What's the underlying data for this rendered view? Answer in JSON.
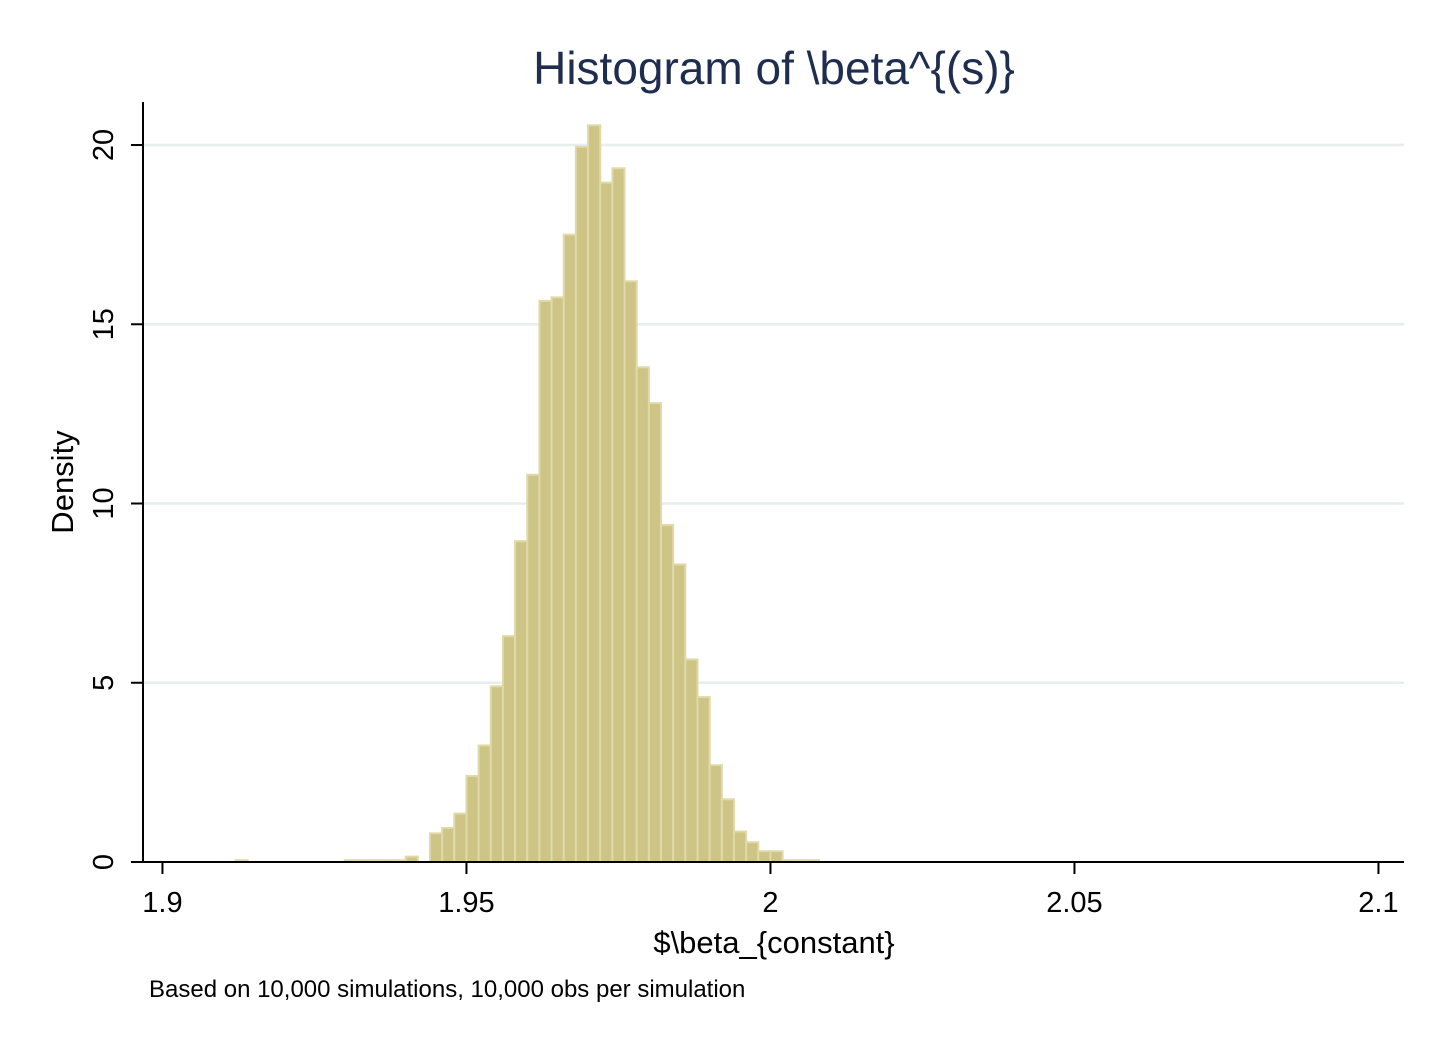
{
  "chart_data": {
    "type": "bar",
    "title": "Histogram of \\beta^{(s)}",
    "xlabel": "$\\beta_{constant}",
    "ylabel": "Density",
    "note": "Based on 10,000 simulations, 10,000 obs per simulation",
    "xlim": [
      1.8968,
      2.1042
    ],
    "ylim": [
      0,
      21.2
    ],
    "xticks": [
      {
        "value": 1.9,
        "label": "1.9"
      },
      {
        "value": 1.95,
        "label": "1.95"
      },
      {
        "value": 2.0,
        "label": "2"
      },
      {
        "value": 2.05,
        "label": "2.05"
      },
      {
        "value": 2.1,
        "label": "2.1"
      }
    ],
    "yticks": [
      {
        "value": 0,
        "label": "0"
      },
      {
        "value": 5,
        "label": "5"
      },
      {
        "value": 10,
        "label": "10"
      },
      {
        "value": 15,
        "label": "15"
      },
      {
        "value": 20,
        "label": "20"
      }
    ],
    "grid": true,
    "bar_color": "#cdc486",
    "bar_edge_color": "#e0d9a8",
    "title_color": "#1f2d4f",
    "grid_color": "#e6eeee",
    "bin_width": 0.002,
    "bins": [
      {
        "x0": 1.912,
        "density": 0.05
      },
      {
        "x0": 1.93,
        "density": 0.05
      },
      {
        "x0": 1.932,
        "density": 0.05
      },
      {
        "x0": 1.934,
        "density": 0.05
      },
      {
        "x0": 1.936,
        "density": 0.05
      },
      {
        "x0": 1.938,
        "density": 0.05
      },
      {
        "x0": 1.94,
        "density": 0.15
      },
      {
        "x0": 1.944,
        "density": 0.8
      },
      {
        "x0": 1.946,
        "density": 0.95
      },
      {
        "x0": 1.948,
        "density": 1.35
      },
      {
        "x0": 1.95,
        "density": 2.4
      },
      {
        "x0": 1.952,
        "density": 3.25
      },
      {
        "x0": 1.954,
        "density": 4.9
      },
      {
        "x0": 1.956,
        "density": 6.3
      },
      {
        "x0": 1.958,
        "density": 8.95
      },
      {
        "x0": 1.96,
        "density": 10.8
      },
      {
        "x0": 1.962,
        "density": 15.65
      },
      {
        "x0": 1.964,
        "density": 15.75
      },
      {
        "x0": 1.966,
        "density": 17.5
      },
      {
        "x0": 1.968,
        "density": 19.95
      },
      {
        "x0": 1.97,
        "density": 20.55
      },
      {
        "x0": 1.972,
        "density": 18.95
      },
      {
        "x0": 1.974,
        "density": 19.35
      },
      {
        "x0": 1.976,
        "density": 16.2
      },
      {
        "x0": 1.978,
        "density": 13.8
      },
      {
        "x0": 1.98,
        "density": 12.8
      },
      {
        "x0": 1.982,
        "density": 9.4
      },
      {
        "x0": 1.984,
        "density": 8.3
      },
      {
        "x0": 1.986,
        "density": 5.65
      },
      {
        "x0": 1.988,
        "density": 4.6
      },
      {
        "x0": 1.99,
        "density": 2.7
      },
      {
        "x0": 1.992,
        "density": 1.75
      },
      {
        "x0": 1.994,
        "density": 0.85
      },
      {
        "x0": 1.996,
        "density": 0.55
      },
      {
        "x0": 1.998,
        "density": 0.3
      },
      {
        "x0": 2.0,
        "density": 0.3
      },
      {
        "x0": 2.002,
        "density": 0.05
      },
      {
        "x0": 2.004,
        "density": 0.05
      },
      {
        "x0": 2.006,
        "density": 0.05
      }
    ]
  }
}
